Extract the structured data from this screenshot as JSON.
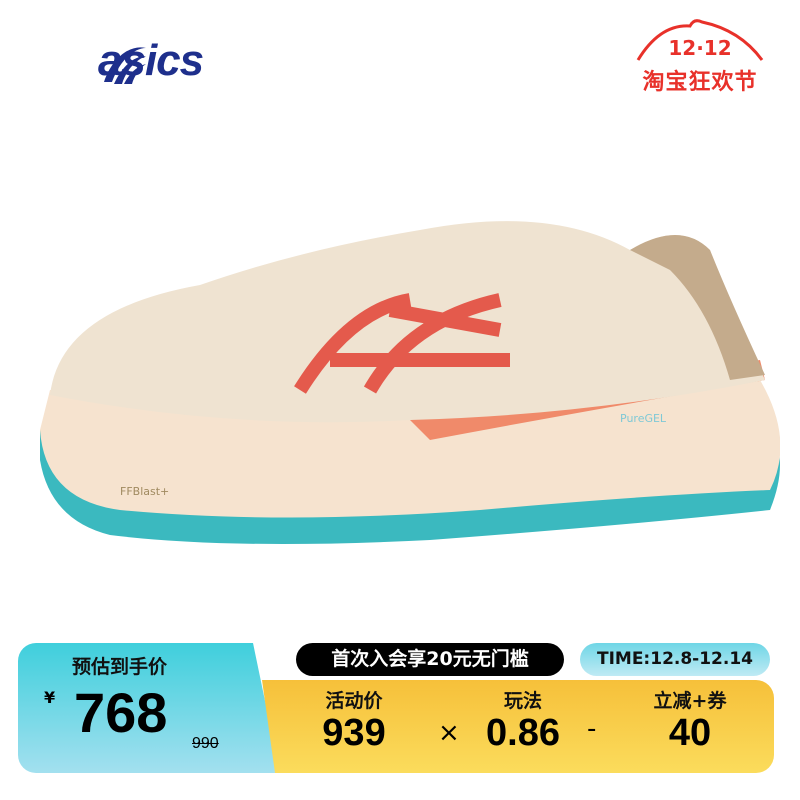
{
  "brand": {
    "logo_text": "asics",
    "color": "#1e2f8c"
  },
  "promo": {
    "date": "12·12",
    "name": "淘宝狂欢节",
    "color": "#e8312a"
  },
  "product": {
    "midsole_text": "FFBlast+",
    "gel_text": "PureGEL"
  },
  "price": {
    "estimate_label": "预估到手价",
    "currency": "¥",
    "estimate_value": "768",
    "original_value": "990",
    "member_offer": "首次入会享20元无门槛",
    "time": "TIME:12.8-12.14",
    "calc": {
      "activity_label": "活动价",
      "activity_value": "939",
      "times": "×",
      "rule_label": "玩法",
      "rule_value": "0.86",
      "minus": "-",
      "discount_label": "立减+券",
      "discount_value": "40"
    }
  }
}
